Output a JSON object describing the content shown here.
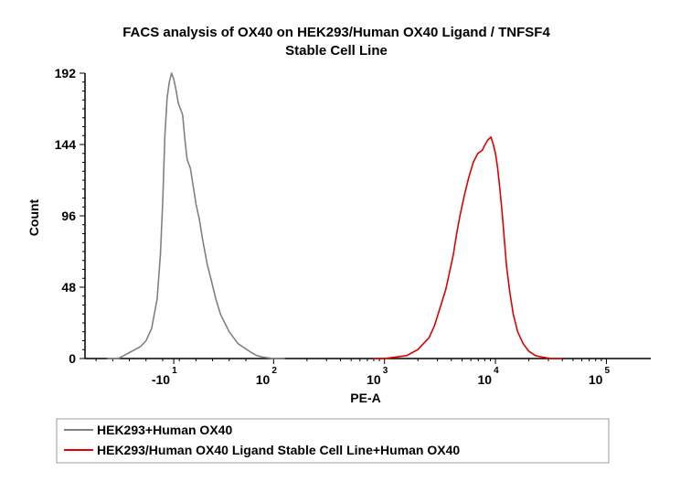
{
  "chart_data": {
    "type": "line",
    "title": "FACS analysis of OX40 on HEK293/Human OX40 Ligand / TNFSF4",
    "subtitle": "Stable Cell Line",
    "xlabel": "PE-A",
    "ylabel": "Count",
    "ylim": [
      0,
      192
    ],
    "yticks": [
      0,
      48,
      96,
      144,
      192
    ],
    "xticks": [
      {
        "base": "-10",
        "exp": "1",
        "pos": 0.4
      },
      {
        "base": "10",
        "exp": "2",
        "pos": 1.3
      },
      {
        "base": "10",
        "exp": "3",
        "pos": 2.3
      },
      {
        "base": "10",
        "exp": "4",
        "pos": 3.3
      },
      {
        "base": "10",
        "exp": "5",
        "pos": 4.3
      }
    ],
    "xlim": [
      -0.4,
      4.7
    ],
    "legend_position": "bottom",
    "series": [
      {
        "name": "HEK293+Human OX40",
        "color": "#808080",
        "points": [
          [
            -0.2,
            0
          ],
          [
            -0.1,
            0
          ],
          [
            -0.05,
            2
          ],
          [
            0.0,
            4
          ],
          [
            0.05,
            6
          ],
          [
            0.1,
            8
          ],
          [
            0.15,
            12
          ],
          [
            0.2,
            20
          ],
          [
            0.25,
            40
          ],
          [
            0.28,
            70
          ],
          [
            0.3,
            105
          ],
          [
            0.32,
            150
          ],
          [
            0.34,
            175
          ],
          [
            0.36,
            186
          ],
          [
            0.38,
            192
          ],
          [
            0.4,
            188
          ],
          [
            0.42,
            181
          ],
          [
            0.44,
            172
          ],
          [
            0.46,
            168
          ],
          [
            0.48,
            164
          ],
          [
            0.5,
            148
          ],
          [
            0.52,
            134
          ],
          [
            0.55,
            128
          ],
          [
            0.58,
            114
          ],
          [
            0.6,
            104
          ],
          [
            0.63,
            94
          ],
          [
            0.66,
            80
          ],
          [
            0.7,
            64
          ],
          [
            0.74,
            52
          ],
          [
            0.78,
            40
          ],
          [
            0.82,
            30
          ],
          [
            0.86,
            24
          ],
          [
            0.9,
            18
          ],
          [
            0.94,
            14
          ],
          [
            0.98,
            10
          ],
          [
            1.02,
            8
          ],
          [
            1.06,
            6
          ],
          [
            1.1,
            4
          ],
          [
            1.15,
            2
          ],
          [
            1.2,
            1
          ],
          [
            1.3,
            0
          ],
          [
            1.4,
            0
          ]
        ]
      },
      {
        "name": "HEK293/Human OX40 Ligand Stable Cell Line+Human OX40",
        "color": "#e00000",
        "points": [
          [
            2.2,
            0
          ],
          [
            2.3,
            0
          ],
          [
            2.4,
            1
          ],
          [
            2.5,
            2
          ],
          [
            2.55,
            4
          ],
          [
            2.6,
            6
          ],
          [
            2.65,
            10
          ],
          [
            2.7,
            14
          ],
          [
            2.75,
            22
          ],
          [
            2.8,
            34
          ],
          [
            2.85,
            46
          ],
          [
            2.88,
            56
          ],
          [
            2.92,
            70
          ],
          [
            2.95,
            84
          ],
          [
            2.98,
            96
          ],
          [
            3.02,
            110
          ],
          [
            3.06,
            122
          ],
          [
            3.1,
            132
          ],
          [
            3.14,
            138
          ],
          [
            3.18,
            140
          ],
          [
            3.2,
            143
          ],
          [
            3.23,
            147
          ],
          [
            3.26,
            149
          ],
          [
            3.28,
            144
          ],
          [
            3.3,
            138
          ],
          [
            3.32,
            128
          ],
          [
            3.34,
            114
          ],
          [
            3.36,
            98
          ],
          [
            3.38,
            80
          ],
          [
            3.4,
            62
          ],
          [
            3.43,
            44
          ],
          [
            3.46,
            30
          ],
          [
            3.5,
            18
          ],
          [
            3.55,
            10
          ],
          [
            3.6,
            5
          ],
          [
            3.66,
            2
          ],
          [
            3.72,
            1
          ],
          [
            3.8,
            0
          ],
          [
            3.9,
            0
          ]
        ]
      }
    ]
  }
}
